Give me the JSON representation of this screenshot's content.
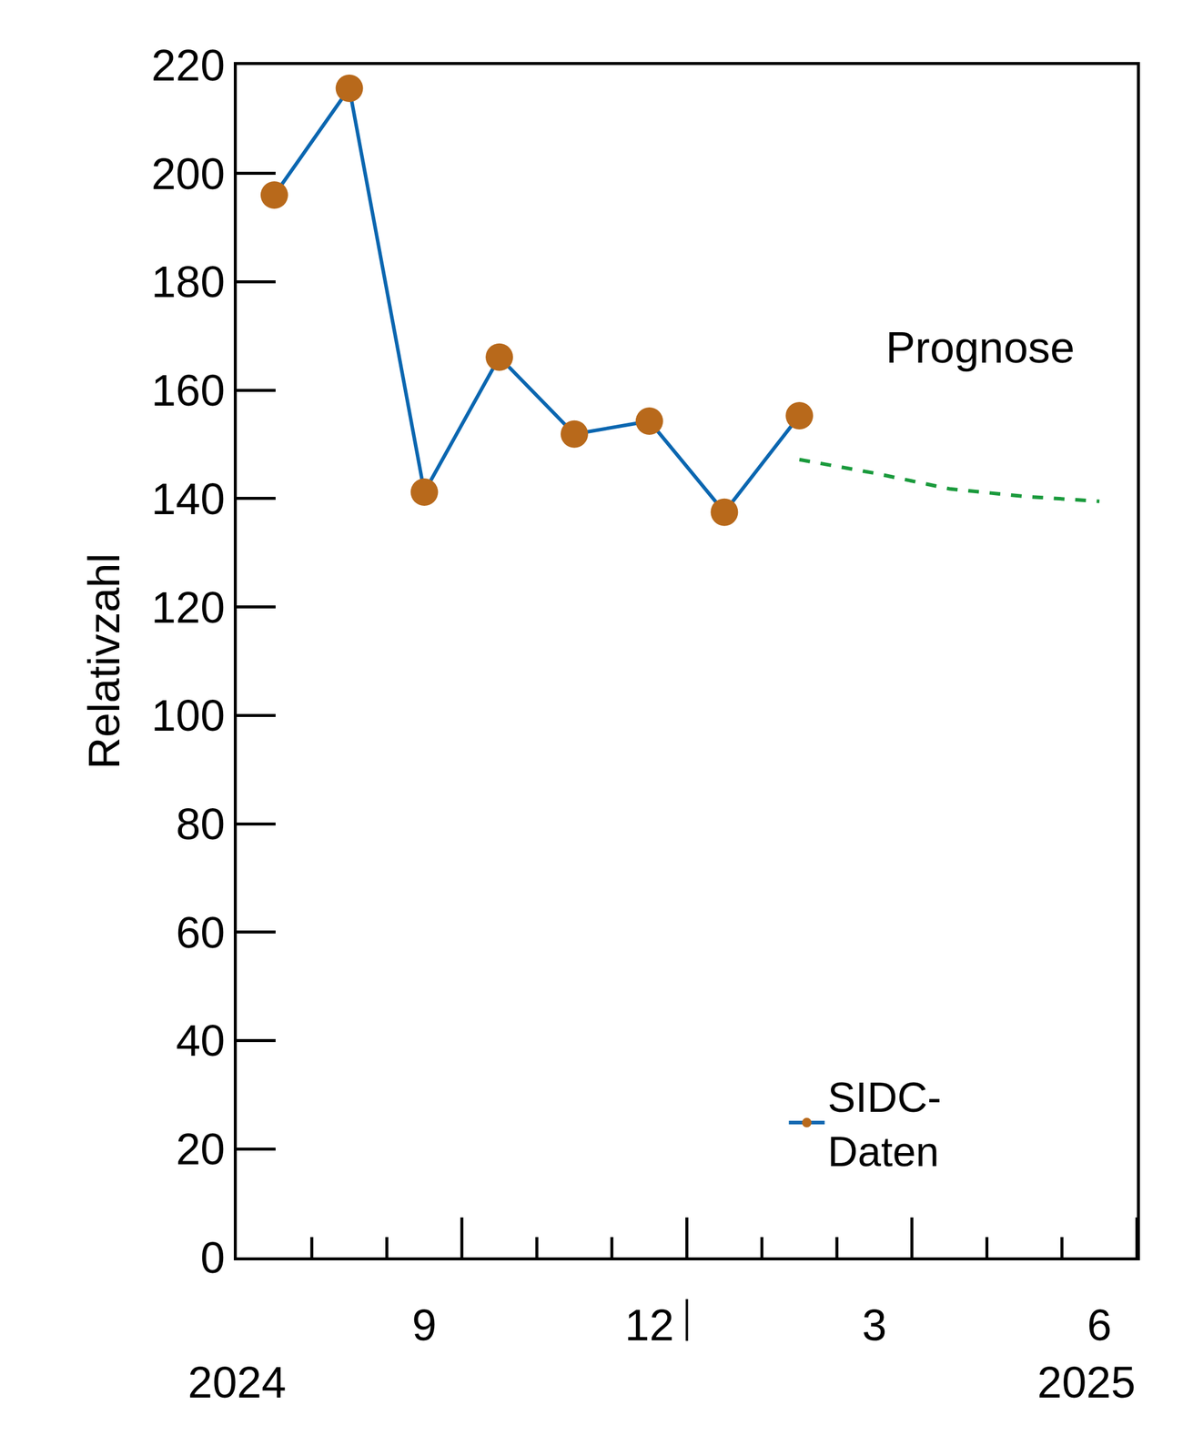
{
  "chart_data": {
    "type": "line",
    "y_label": "Relativzahl",
    "categories": [
      null,
      null,
      "9",
      null,
      null,
      "12",
      null,
      null,
      "3",
      null,
      null,
      "6"
    ],
    "year_labels": [
      "2024",
      "2025"
    ],
    "series": [
      {
        "name": "SIDC-Daten",
        "color": "#0a66b0",
        "marker_color": "#b8691b",
        "marker": "circle",
        "line_style": "solid",
        "values": [
          196.0,
          215.7,
          141.2,
          166.1,
          151.9,
          154.3,
          137.5,
          155.3,
          null,
          null,
          null,
          null
        ]
      },
      {
        "name": "Prognose",
        "color": "#1a9a3c",
        "line_style": "dash",
        "values": [
          null,
          null,
          null,
          null,
          null,
          null,
          null,
          147.2,
          144.7,
          141.8,
          140.4,
          139.5
        ]
      }
    ],
    "ylim": [
      0,
      220
    ],
    "yticks": [
      0,
      20,
      40,
      60,
      80,
      100,
      120,
      140,
      160,
      180,
      200,
      220
    ],
    "legend": "lower right",
    "grid": false
  }
}
